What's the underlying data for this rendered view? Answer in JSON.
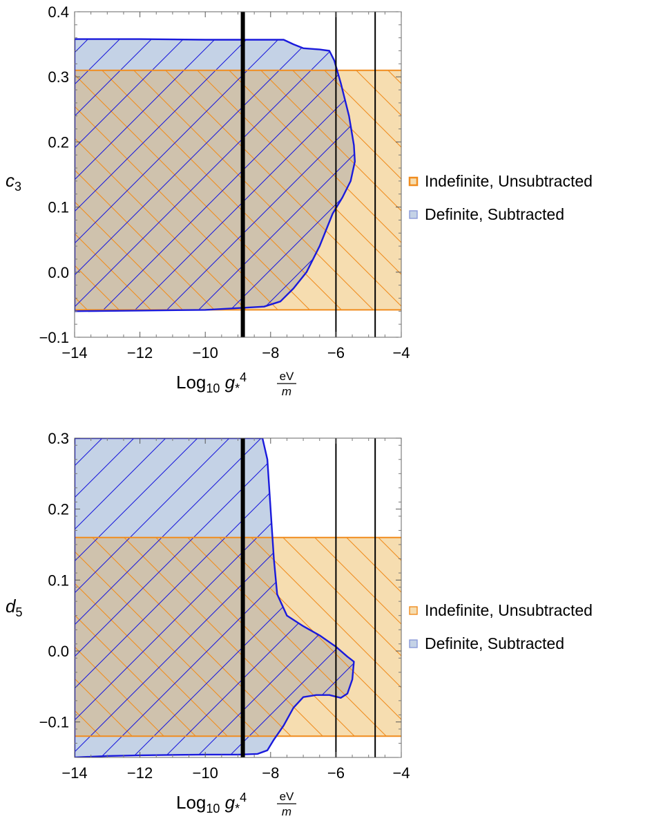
{
  "colors": {
    "orange_fill": "#f6ddb0",
    "orange_line": "#f08c1e",
    "blue_fill": "#c4d2e6",
    "blue_line": "#1a1adc",
    "overlap_fill": "#cfc2ad",
    "vline": "#000000"
  },
  "chart_data": [
    {
      "type": "area",
      "name": "top",
      "xlabel": "Log₁₀ g₊⁴ eV/m",
      "xlabel_parts": {
        "log": "Log",
        "sub": "10",
        "g": "g",
        "star": "*",
        "sup": "4",
        "num": "eV",
        "den": "m"
      },
      "ylabel": {
        "base": "c",
        "sub": "3"
      },
      "xlim": [
        -14,
        -4
      ],
      "ylim": [
        -0.1,
        0.4
      ],
      "xticks": [
        -14,
        -12,
        -10,
        -8,
        -6,
        -4
      ],
      "xtick_labels": [
        "−14",
        "−12",
        "−10",
        "−8",
        "−6",
        "−4"
      ],
      "yticks": [
        -0.1,
        0.0,
        0.1,
        0.2,
        0.3,
        0.4
      ],
      "ytick_labels": [
        "−0.1",
        "0.0",
        "0.1",
        "0.2",
        "0.3",
        "0.4"
      ],
      "grid": false,
      "legend_position": "right",
      "vlines": [
        {
          "x": -8.85,
          "weight": "thick"
        },
        {
          "x": -6.0,
          "weight": "normal"
        },
        {
          "x": -4.8,
          "weight": "normal"
        }
      ],
      "regions": [
        {
          "name": "Indefinite, Unsubtracted",
          "shape": "rect",
          "x": [
            -14,
            -4
          ],
          "y": [
            -0.058,
            0.31
          ],
          "hatch": "down-right"
        },
        {
          "name": "Definite, Subtracted",
          "shape": "polygon",
          "hatch": "up-right",
          "points": [
            [
              -14.0,
              0.358
            ],
            [
              -12.0,
              0.358
            ],
            [
              -10.0,
              0.357
            ],
            [
              -7.6,
              0.357
            ],
            [
              -7.3,
              0.35
            ],
            [
              -7.0,
              0.344
            ],
            [
              -6.5,
              0.342
            ],
            [
              -6.2,
              0.34
            ],
            [
              -6.05,
              0.325
            ],
            [
              -5.85,
              0.29
            ],
            [
              -5.6,
              0.24
            ],
            [
              -5.45,
              0.195
            ],
            [
              -5.42,
              0.17
            ],
            [
              -5.55,
              0.14
            ],
            [
              -5.8,
              0.115
            ],
            [
              -6.1,
              0.09
            ],
            [
              -6.5,
              0.04
            ],
            [
              -6.9,
              0.0
            ],
            [
              -7.3,
              -0.025
            ],
            [
              -7.7,
              -0.045
            ],
            [
              -8.2,
              -0.053
            ],
            [
              -8.9,
              -0.055
            ],
            [
              -10.0,
              -0.058
            ],
            [
              -12.0,
              -0.059
            ],
            [
              -14.0,
              -0.06
            ]
          ]
        }
      ],
      "legend": [
        "Indefinite, Unsubtracted",
        "Definite, Subtracted"
      ]
    },
    {
      "type": "area",
      "name": "bottom",
      "xlabel": "Log₁₀ g₊⁴ eV/m",
      "xlabel_parts": {
        "log": "Log",
        "sub": "10",
        "g": "g",
        "star": "*",
        "sup": "4",
        "num": "eV",
        "den": "m"
      },
      "ylabel": {
        "base": "d",
        "sub": "5"
      },
      "xlim": [
        -14,
        -4
      ],
      "ylim": [
        -0.15,
        0.3
      ],
      "xticks": [
        -14,
        -12,
        -10,
        -8,
        -6,
        -4
      ],
      "xtick_labels": [
        "−14",
        "−12",
        "−10",
        "−8",
        "−6",
        "−4"
      ],
      "yticks": [
        -0.1,
        0.0,
        0.1,
        0.2,
        0.3
      ],
      "ytick_labels": [
        "−0.1",
        "0.0",
        "0.1",
        "0.2",
        "0.3"
      ],
      "grid": false,
      "legend_position": "right",
      "vlines": [
        {
          "x": -8.85,
          "weight": "thick"
        },
        {
          "x": -6.0,
          "weight": "normal"
        },
        {
          "x": -4.8,
          "weight": "normal"
        }
      ],
      "regions": [
        {
          "name": "Indefinite, Unsubtracted",
          "shape": "rect",
          "x": [
            -14,
            -4
          ],
          "y": [
            -0.12,
            0.16
          ],
          "hatch": "down-right"
        },
        {
          "name": "Definite, Subtracted",
          "shape": "polygon",
          "hatch": "up-right",
          "points": [
            [
              -14.0,
              0.3
            ],
            [
              -8.25,
              0.3
            ],
            [
              -8.1,
              0.27
            ],
            [
              -8.0,
              0.2
            ],
            [
              -7.9,
              0.13
            ],
            [
              -7.8,
              0.08
            ],
            [
              -7.5,
              0.05
            ],
            [
              -7.0,
              0.035
            ],
            [
              -6.5,
              0.022
            ],
            [
              -6.0,
              0.006
            ],
            [
              -5.65,
              -0.008
            ],
            [
              -5.45,
              -0.015
            ],
            [
              -5.5,
              -0.04
            ],
            [
              -5.65,
              -0.06
            ],
            [
              -5.85,
              -0.066
            ],
            [
              -6.2,
              -0.062
            ],
            [
              -6.6,
              -0.062
            ],
            [
              -7.0,
              -0.065
            ],
            [
              -7.3,
              -0.08
            ],
            [
              -7.6,
              -0.105
            ],
            [
              -7.9,
              -0.125
            ],
            [
              -8.1,
              -0.14
            ],
            [
              -8.4,
              -0.145
            ],
            [
              -9.0,
              -0.146
            ],
            [
              -10.0,
              -0.146
            ],
            [
              -12.0,
              -0.147
            ],
            [
              -13.0,
              -0.148
            ],
            [
              -14.0,
              -0.15
            ]
          ]
        }
      ],
      "legend": [
        "Indefinite, Unsubtracted",
        "Definite, Subtracted"
      ]
    }
  ]
}
